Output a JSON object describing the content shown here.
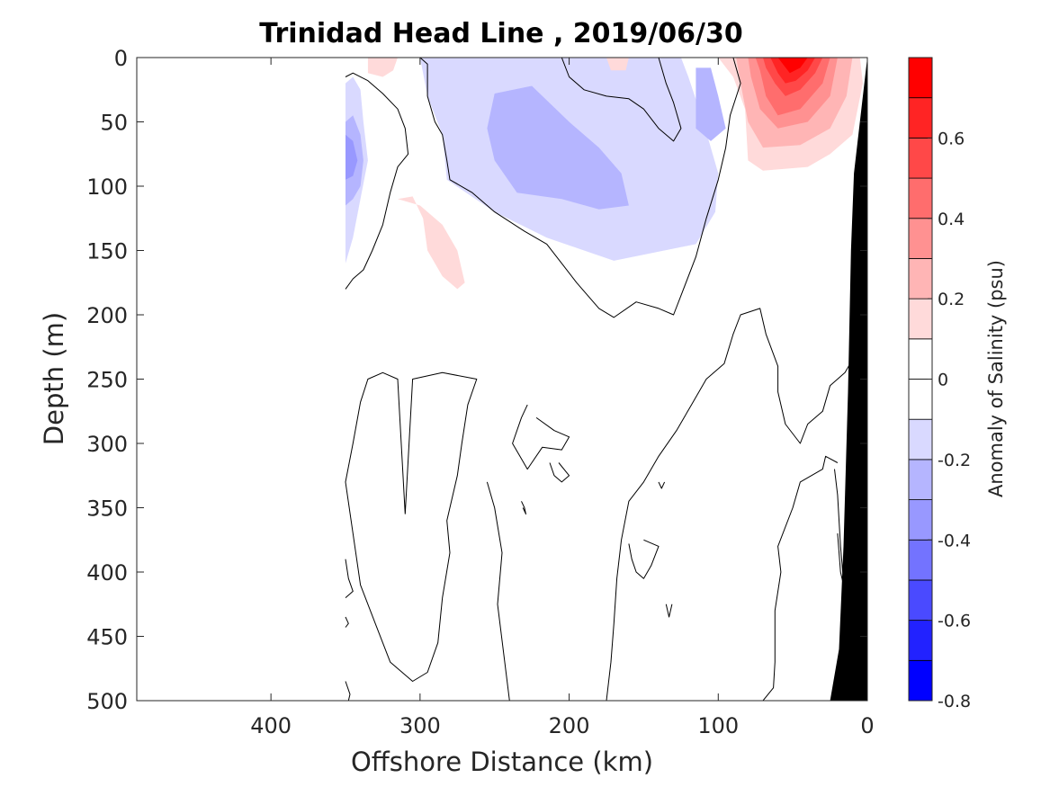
{
  "chart_data": {
    "type": "contour",
    "title": "Trinidad Head Line , 2019/06/30",
    "xlabel": "Offshore Distance (km)",
    "ylabel": "Depth (m)",
    "xlim": [
      490,
      0
    ],
    "ylim": [
      0,
      500
    ],
    "x_reversed": true,
    "y_reversed": true,
    "xticks": [
      400,
      300,
      200,
      100,
      0
    ],
    "yticks": [
      0,
      50,
      100,
      150,
      200,
      250,
      300,
      350,
      400,
      450,
      500
    ],
    "colorbar": {
      "label": "Anomaly of Salinity (psu)",
      "range": [
        -0.8,
        0.8
      ],
      "levels": [
        -0.8,
        -0.7,
        -0.6,
        -0.5,
        -0.4,
        -0.3,
        -0.2,
        -0.1,
        0,
        0.1,
        0.2,
        0.3,
        0.4,
        0.5,
        0.6,
        0.7,
        0.8
      ],
      "ticks": [
        -0.8,
        -0.6,
        -0.4,
        -0.2,
        0,
        0.2,
        0.4,
        0.6
      ],
      "tick_labels": [
        "-0.8",
        "-0.6",
        "-0.4",
        "-0.2",
        "0",
        "0.2",
        "0.4",
        "0.6"
      ],
      "colors": [
        "#0000ff",
        "#2222ff",
        "#4a4aff",
        "#7373ff",
        "#9898ff",
        "#b5b5ff",
        "#d9d9ff",
        "#ffffff",
        "#ffffff",
        "#ffdada",
        "#ffb5b5",
        "#ff9191",
        "#ff6d6d",
        "#ff4848",
        "#ff2424",
        "#ff0000"
      ]
    },
    "data_coverage_km": [
      350,
      0
    ],
    "zero_contour_color": "#000000",
    "bathymetry_color": "#000000",
    "bathymetry": [
      [
        0,
        0
      ],
      [
        1,
        10
      ],
      [
        9,
        90
      ],
      [
        11,
        150
      ],
      [
        13,
        260
      ],
      [
        16,
        380
      ],
      [
        19,
        460
      ],
      [
        25,
        500
      ],
      [
        0,
        500
      ]
    ],
    "fill_regions": [
      {
        "level": -0.15,
        "points": [
          [
            350,
            20
          ],
          [
            345,
            15
          ],
          [
            340,
            25
          ],
          [
            338,
            50
          ],
          [
            335,
            80
          ],
          [
            340,
            110
          ],
          [
            345,
            140
          ],
          [
            350,
            160
          ]
        ]
      },
      {
        "level": -0.25,
        "points": [
          [
            350,
            50
          ],
          [
            345,
            45
          ],
          [
            340,
            60
          ],
          [
            338,
            80
          ],
          [
            340,
            100
          ],
          [
            345,
            110
          ],
          [
            350,
            115
          ]
        ]
      },
      {
        "level": -0.35,
        "points": [
          [
            350,
            60
          ],
          [
            345,
            65
          ],
          [
            342,
            80
          ],
          [
            345,
            92
          ],
          [
            350,
            95
          ]
        ]
      },
      {
        "level": -0.15,
        "points": [
          [
            300,
            0
          ],
          [
            125,
            0
          ],
          [
            120,
            15
          ],
          [
            110,
            50
          ],
          [
            100,
            90
          ],
          [
            102,
            120
          ],
          [
            115,
            145
          ],
          [
            170,
            158
          ],
          [
            215,
            140
          ],
          [
            250,
            120
          ],
          [
            282,
            95
          ],
          [
            285,
            60
          ],
          [
            295,
            30
          ]
        ]
      },
      {
        "level": -0.25,
        "points": [
          [
            250,
            28
          ],
          [
            225,
            22
          ],
          [
            200,
            50
          ],
          [
            180,
            70
          ],
          [
            165,
            90
          ],
          [
            160,
            115
          ],
          [
            180,
            118
          ],
          [
            205,
            110
          ],
          [
            235,
            105
          ],
          [
            250,
            80
          ],
          [
            255,
            55
          ]
        ]
      },
      {
        "level": -0.25,
        "points": [
          [
            115,
            8
          ],
          [
            105,
            8
          ],
          [
            100,
            30
          ],
          [
            95,
            55
          ],
          [
            105,
            65
          ],
          [
            115,
            55
          ]
        ]
      },
      {
        "level": -0.15,
        "points": [
          [
            265,
            0
          ],
          [
            255,
            0
          ],
          [
            252,
            10
          ],
          [
            258,
            12
          ]
        ]
      },
      {
        "level": 0.15,
        "points": [
          [
            335,
            0
          ],
          [
            315,
            0
          ],
          [
            318,
            10
          ],
          [
            325,
            15
          ],
          [
            335,
            12
          ]
        ]
      },
      {
        "level": 0.15,
        "points": [
          [
            175,
            0
          ],
          [
            160,
            0
          ],
          [
            162,
            10
          ],
          [
            172,
            10
          ]
        ]
      },
      {
        "level": 0.15,
        "points": [
          [
            315,
            110
          ],
          [
            305,
            108
          ],
          [
            298,
            125
          ],
          [
            295,
            150
          ],
          [
            285,
            170
          ],
          [
            275,
            180
          ],
          [
            270,
            175
          ],
          [
            275,
            150
          ],
          [
            285,
            130
          ],
          [
            300,
            115
          ]
        ]
      },
      {
        "level": 0.15,
        "points": [
          [
            100,
            0
          ],
          [
            5,
            0
          ],
          [
            3,
            20
          ],
          [
            10,
            60
          ],
          [
            25,
            75
          ],
          [
            40,
            85
          ],
          [
            70,
            88
          ],
          [
            80,
            80
          ],
          [
            82,
            40
          ],
          [
            90,
            15
          ]
        ]
      },
      {
        "level": 0.25,
        "points": [
          [
            88,
            0
          ],
          [
            10,
            0
          ],
          [
            14,
            30
          ],
          [
            25,
            55
          ],
          [
            45,
            68
          ],
          [
            70,
            70
          ],
          [
            80,
            50
          ],
          [
            85,
            20
          ]
        ]
      },
      {
        "level": 0.35,
        "points": [
          [
            80,
            0
          ],
          [
            20,
            0
          ],
          [
            25,
            30
          ],
          [
            40,
            50
          ],
          [
            60,
            55
          ],
          [
            72,
            40
          ],
          [
            78,
            15
          ]
        ]
      },
      {
        "level": 0.45,
        "points": [
          [
            75,
            0
          ],
          [
            25,
            0
          ],
          [
            30,
            20
          ],
          [
            45,
            40
          ],
          [
            60,
            45
          ],
          [
            68,
            30
          ],
          [
            72,
            10
          ]
        ]
      },
      {
        "level": 0.55,
        "points": [
          [
            70,
            0
          ],
          [
            30,
            0
          ],
          [
            35,
            12
          ],
          [
            45,
            25
          ],
          [
            55,
            30
          ],
          [
            62,
            20
          ],
          [
            68,
            8
          ]
        ]
      },
      {
        "level": 0.65,
        "points": [
          [
            65,
            0
          ],
          [
            35,
            0
          ],
          [
            40,
            10
          ],
          [
            48,
            18
          ],
          [
            55,
            20
          ],
          [
            60,
            12
          ]
        ]
      },
      {
        "level": 0.75,
        "points": [
          [
            60,
            0
          ],
          [
            40,
            0
          ],
          [
            45,
            8
          ],
          [
            52,
            12
          ],
          [
            56,
            6
          ]
        ]
      }
    ],
    "zero_contours": [
      [
        [
          350,
          15
        ],
        [
          345,
          12
        ],
        [
          335,
          18
        ],
        [
          325,
          28
        ],
        [
          315,
          40
        ],
        [
          310,
          55
        ],
        [
          308,
          75
        ],
        [
          315,
          85
        ],
        [
          320,
          105
        ],
        [
          325,
          130
        ],
        [
          332,
          150
        ],
        [
          338,
          165
        ],
        [
          345,
          172
        ],
        [
          350,
          180
        ]
      ],
      [
        [
          300,
          0
        ],
        [
          295,
          5
        ],
        [
          295,
          30
        ],
        [
          290,
          50
        ],
        [
          285,
          60
        ],
        [
          282,
          80
        ],
        [
          280,
          95
        ],
        [
          265,
          105
        ],
        [
          250,
          120
        ],
        [
          230,
          135
        ],
        [
          215,
          145
        ],
        [
          205,
          160
        ],
        [
          195,
          175
        ],
        [
          180,
          195
        ],
        [
          170,
          202
        ],
        [
          155,
          190
        ],
        [
          140,
          195
        ],
        [
          130,
          200
        ],
        [
          125,
          185
        ],
        [
          115,
          155
        ],
        [
          108,
          125
        ],
        [
          100,
          95
        ],
        [
          95,
          70
        ],
        [
          92,
          45
        ],
        [
          85,
          20
        ],
        [
          90,
          0
        ]
      ],
      [
        [
          205,
          0
        ],
        [
          200,
          15
        ],
        [
          190,
          25
        ],
        [
          175,
          30
        ],
        [
          160,
          32
        ],
        [
          150,
          40
        ],
        [
          140,
          55
        ],
        [
          130,
          65
        ],
        [
          125,
          55
        ],
        [
          130,
          35
        ],
        [
          135,
          20
        ],
        [
          140,
          0
        ]
      ],
      [
        [
          310,
          355
        ],
        [
          315,
          250
        ],
        [
          325,
          245
        ],
        [
          335,
          250
        ],
        [
          340,
          268
        ],
        [
          345,
          300
        ],
        [
          350,
          330
        ],
        [
          345,
          370
        ],
        [
          340,
          410
        ],
        [
          330,
          440
        ],
        [
          320,
          470
        ],
        [
          305,
          485
        ],
        [
          295,
          478
        ],
        [
          288,
          455
        ],
        [
          285,
          420
        ],
        [
          280,
          385
        ],
        [
          282,
          360
        ],
        [
          275,
          325
        ],
        [
          272,
          300
        ],
        [
          268,
          270
        ],
        [
          262,
          250
        ],
        [
          285,
          245
        ],
        [
          305,
          250
        ],
        [
          310,
          355
        ]
      ],
      [
        [
          255,
          330
        ],
        [
          250,
          350
        ],
        [
          245,
          385
        ],
        [
          248,
          425
        ],
        [
          240,
          500
        ]
      ],
      [
        [
          228,
          270
        ],
        [
          232,
          280
        ],
        [
          238,
          300
        ],
        [
          228,
          320
        ],
        [
          218,
          303
        ],
        [
          205,
          305
        ],
        [
          200,
          295
        ],
        [
          210,
          290
        ],
        [
          222,
          280
        ]
      ],
      [
        [
          213,
          315
        ],
        [
          210,
          325
        ],
        [
          205,
          330
        ],
        [
          200,
          325
        ],
        [
          207,
          315
        ]
      ],
      [
        [
          232,
          345
        ],
        [
          230,
          350
        ],
        [
          229,
          355
        ],
        [
          231,
          350
        ]
      ],
      [
        [
          175,
          500
        ],
        [
          172,
          470
        ],
        [
          170,
          440
        ],
        [
          168,
          405
        ],
        [
          165,
          375
        ],
        [
          160,
          345
        ],
        [
          150,
          330
        ],
        [
          140,
          310
        ],
        [
          128,
          290
        ],
        [
          118,
          270
        ],
        [
          108,
          250
        ],
        [
          96,
          238
        ],
        [
          90,
          215
        ],
        [
          85,
          200
        ],
        [
          72,
          195
        ],
        [
          68,
          215
        ],
        [
          60,
          240
        ],
        [
          60,
          260
        ],
        [
          55,
          285
        ],
        [
          45,
          300
        ],
        [
          40,
          285
        ],
        [
          30,
          275
        ],
        [
          25,
          255
        ],
        [
          15,
          245
        ],
        [
          10,
          235
        ]
      ],
      [
        [
          160,
          378
        ],
        [
          158,
          390
        ],
        [
          155,
          400
        ],
        [
          150,
          405
        ],
        [
          145,
          395
        ],
        [
          140,
          380
        ],
        [
          150,
          375
        ]
      ],
      [
        [
          140,
          330
        ],
        [
          138,
          335
        ],
        [
          136,
          330
        ]
      ],
      [
        [
          135,
          425
        ],
        [
          133,
          435
        ],
        [
          131,
          425
        ]
      ],
      [
        [
          70,
          500
        ],
        [
          63,
          490
        ],
        [
          62,
          470
        ],
        [
          62,
          430
        ],
        [
          58,
          400
        ],
        [
          60,
          380
        ],
        [
          50,
          350
        ],
        [
          45,
          330
        ],
        [
          30,
          320
        ],
        [
          28,
          310
        ],
        [
          20,
          315
        ]
      ],
      [
        [
          22,
          320
        ],
        [
          20,
          340
        ],
        [
          18,
          380
        ],
        [
          15,
          420
        ],
        [
          10,
          460
        ],
        [
          5,
          500
        ]
      ],
      [
        [
          20,
          370
        ],
        [
          18,
          400
        ],
        [
          14,
          420
        ],
        [
          10,
          410
        ]
      ],
      [
        [
          350,
          390
        ],
        [
          348,
          405
        ],
        [
          345,
          415
        ],
        [
          350,
          420
        ]
      ],
      [
        [
          350,
          435
        ],
        [
          348,
          440
        ],
        [
          350,
          443
        ]
      ],
      [
        [
          350,
          485
        ],
        [
          347,
          495
        ],
        [
          348,
          500
        ]
      ]
    ]
  }
}
